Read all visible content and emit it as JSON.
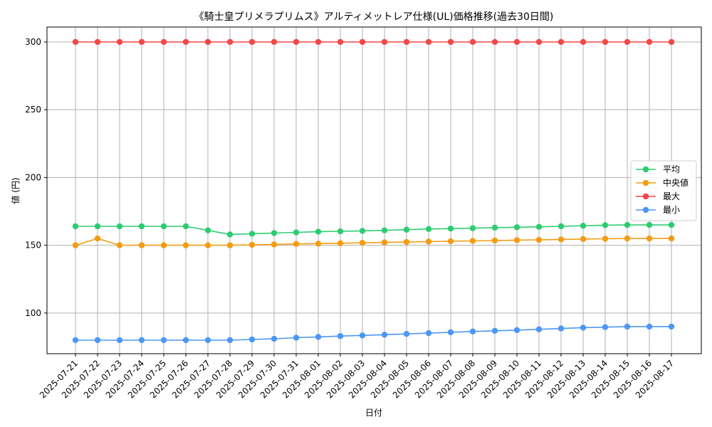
{
  "chart_data": {
    "type": "line",
    "title": "《騎士皇プリメラプリムス》アルティメットレア仕様(UL)価格推移(過去30日間)",
    "xlabel": "日付",
    "ylabel": "値 (円)",
    "ylim": [
      70,
      311
    ],
    "yticks": [
      100,
      150,
      200,
      250,
      300
    ],
    "grid": true,
    "legend_position": "center-right",
    "x": [
      "2025-07-21",
      "2025-07-22",
      "2025-07-23",
      "2025-07-24",
      "2025-07-25",
      "2025-07-26",
      "2025-07-27",
      "2025-07-28",
      "2025-07-29",
      "2025-07-30",
      "2025-07-31",
      "2025-08-01",
      "2025-08-02",
      "2025-08-03",
      "2025-08-04",
      "2025-08-05",
      "2025-08-06",
      "2025-08-07",
      "2025-08-08",
      "2025-08-09",
      "2025-08-10",
      "2025-08-11",
      "2025-08-12",
      "2025-08-13",
      "2025-08-14",
      "2025-08-15",
      "2025-08-16",
      "2025-08-17"
    ],
    "series": [
      {
        "name": "平均",
        "color": "#2ecc71",
        "values": [
          164,
          164,
          164,
          164,
          164,
          164,
          161,
          158,
          158.5,
          159,
          159.5,
          160,
          160.3,
          160.6,
          161,
          161.5,
          162,
          162.3,
          162.6,
          163,
          163.3,
          163.6,
          164,
          164.4,
          164.8,
          165,
          165,
          165
        ]
      },
      {
        "name": "中央値",
        "color": "#f39c12",
        "values": [
          150,
          155,
          150,
          150,
          150,
          150,
          150,
          150,
          150.3,
          150.6,
          151,
          151.2,
          151.5,
          151.8,
          152.1,
          152.4,
          152.7,
          153,
          153.2,
          153.5,
          153.8,
          154,
          154.3,
          154.6,
          154.8,
          155,
          155,
          155
        ]
      },
      {
        "name": "最大",
        "color": "#f44747",
        "values": [
          300,
          300,
          300,
          300,
          300,
          300,
          300,
          300,
          300,
          300,
          300,
          300,
          300,
          300,
          300,
          300,
          300,
          300,
          300,
          300,
          300,
          300,
          300,
          300,
          300,
          300,
          300,
          300
        ]
      },
      {
        "name": "最小",
        "color": "#4c97f5",
        "values": [
          80,
          80,
          80,
          80,
          80,
          80,
          80,
          80,
          80.5,
          81,
          81.8,
          82.4,
          83,
          83.5,
          84,
          84.6,
          85.2,
          85.8,
          86.4,
          86.9,
          87.4,
          88,
          88.6,
          89.2,
          89.6,
          90,
          90,
          90
        ]
      }
    ]
  }
}
